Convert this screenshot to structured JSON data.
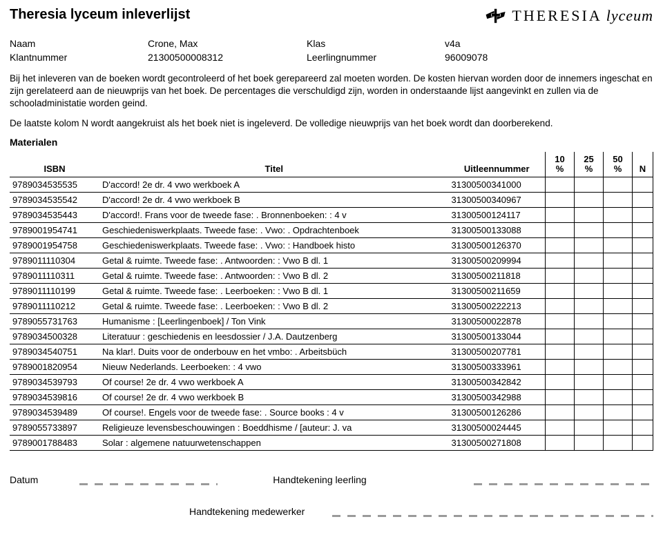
{
  "colors": {
    "text": "#000000",
    "background": "#ffffff",
    "dash": "#9a9a9a",
    "border": "#000000"
  },
  "title": "Theresia lyceum inleverlijst",
  "logo": {
    "brand1": "THERESIA",
    "brand2": "lyceum"
  },
  "meta": {
    "name_label": "Naam",
    "name_value": "Crone, Max",
    "class_label": "Klas",
    "class_value": "v4a",
    "custno_label": "Klantnummer",
    "custno_value": "21300500008312",
    "studno_label": "Leerlingnummer",
    "studno_value": "96009078"
  },
  "paragraphs": {
    "p1": "Bij het inleveren van de boeken wordt gecontroleerd of het boek gerepareerd zal moeten worden. De kosten hiervan worden door de innemers ingeschat en zijn gerelateerd aan de nieuwprijs van het boek. De percentages die verschuldigd zijn, worden in onderstaande lijst aangevinkt en zullen via de schooladministatie worden geind.",
    "p2": "De laatste kolom N wordt aangekruist als het boek niet is ingeleverd. De volledige nieuwprijs van het boek wordt dan doorberekend."
  },
  "table": {
    "heading": "Materialen",
    "headers": {
      "isbn": "ISBN",
      "title": "Titel",
      "loan": "Uitleennummer",
      "p10_top": "10",
      "p10_bot": "%",
      "p25_top": "25",
      "p25_bot": "%",
      "p50_top": "50",
      "p50_bot": "%",
      "n": "N"
    },
    "rows": [
      {
        "isbn": "9789034535535",
        "title": "D'accord! 2e dr. 4 vwo werkboek A",
        "loan": "31300500341000"
      },
      {
        "isbn": "9789034535542",
        "title": "D'accord! 2e dr. 4 vwo werkboek B",
        "loan": "31300500340967"
      },
      {
        "isbn": "9789034535443",
        "title": "D'accord!. Frans voor de tweede fase: . Bronnenboeken: : 4 v",
        "loan": "31300500124117"
      },
      {
        "isbn": "9789001954741",
        "title": "Geschiedeniswerkplaats. Tweede fase: . Vwo: . Opdrachtenboek",
        "loan": "31300500133088"
      },
      {
        "isbn": "9789001954758",
        "title": "Geschiedeniswerkplaats. Tweede fase: . Vwo: : Handboek histo",
        "loan": "31300500126370"
      },
      {
        "isbn": "9789011110304",
        "title": "Getal & ruimte. Tweede fase: . Antwoorden: : Vwo B dl. 1",
        "loan": "31300500209994"
      },
      {
        "isbn": "9789011110311",
        "title": "Getal & ruimte. Tweede fase: . Antwoorden: : Vwo B dl. 2",
        "loan": "31300500211818"
      },
      {
        "isbn": "9789011110199",
        "title": "Getal & ruimte. Tweede fase: . Leerboeken: : Vwo B dl. 1",
        "loan": "31300500211659"
      },
      {
        "isbn": "9789011110212",
        "title": "Getal & ruimte. Tweede fase: . Leerboeken: : Vwo B dl. 2",
        "loan": "31300500222213"
      },
      {
        "isbn": "9789055731763",
        "title": "Humanisme : [Leerlingenboek] / Ton Vink",
        "loan": "31300500022878"
      },
      {
        "isbn": "9789034500328",
        "title": "Literatuur : geschiedenis en leesdossier / J.A. Dautzenberg",
        "loan": "31300500133044"
      },
      {
        "isbn": "9789034540751",
        "title": "Na klar!. Duits voor de onderbouw en het vmbo: . Arbeitsbüch",
        "loan": "31300500207781"
      },
      {
        "isbn": "9789001820954",
        "title": "Nieuw Nederlands. Leerboeken: : 4 vwo",
        "loan": "31300500333961"
      },
      {
        "isbn": "9789034539793",
        "title": "Of course! 2e dr. 4 vwo werkboek A",
        "loan": "31300500342842"
      },
      {
        "isbn": "9789034539816",
        "title": "Of course! 2e dr. 4 vwo werkboek B",
        "loan": "31300500342988"
      },
      {
        "isbn": "9789034539489",
        "title": "Of course!. Engels voor de tweede fase: . Source books : 4 v",
        "loan": "31300500126286"
      },
      {
        "isbn": "9789055733897",
        "title": "Religieuze levensbeschouwingen : Boeddhisme / [auteur: J. va",
        "loan": "31300500024445"
      },
      {
        "isbn": "9789001788483",
        "title": "Solar : algemene natuurwetenschappen",
        "loan": "31300500271808"
      }
    ]
  },
  "signatures": {
    "date_label": "Datum",
    "sig_student_label": "Handtekening leerling",
    "sig_staff_label": "Handtekening medewerker"
  }
}
